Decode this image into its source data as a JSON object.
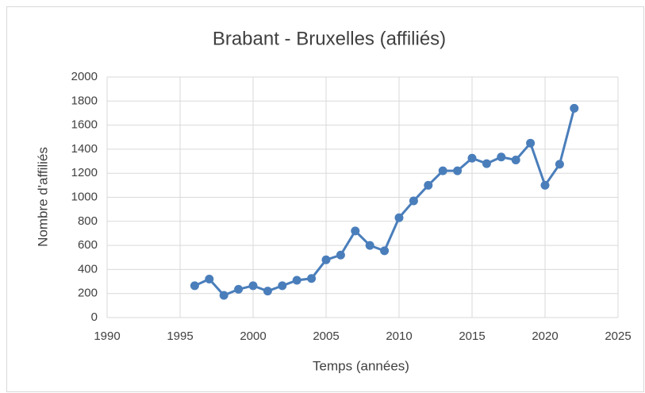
{
  "chart_data": {
    "type": "line",
    "title": "Brabant - Bruxelles (affiliés)",
    "x_label": "Temps (années)",
    "y_label": "Nombre d'affiliés",
    "x": [
      1996,
      1997,
      1998,
      1999,
      2000,
      2001,
      2002,
      2003,
      2004,
      2005,
      2006,
      2007,
      2008,
      2009,
      2010,
      2011,
      2012,
      2013,
      2014,
      2015,
      2016,
      2017,
      2018,
      2019,
      2020,
      2021,
      2022
    ],
    "values": [
      265,
      320,
      185,
      235,
      265,
      220,
      265,
      310,
      325,
      480,
      520,
      720,
      600,
      555,
      830,
      970,
      1100,
      1220,
      1220,
      1325,
      1280,
      1335,
      1310,
      1450,
      1100,
      1275,
      1740
    ],
    "color": "#4a7ebb",
    "xlim": [
      1990,
      2025
    ],
    "xticks": [
      1990,
      1995,
      2000,
      2005,
      2010,
      2015,
      2020,
      2025
    ],
    "ylim": [
      0,
      2000
    ],
    "yticks": [
      0,
      200,
      400,
      600,
      800,
      1000,
      1200,
      1400,
      1600,
      1800,
      2000
    ],
    "grid": true,
    "markers": true
  }
}
